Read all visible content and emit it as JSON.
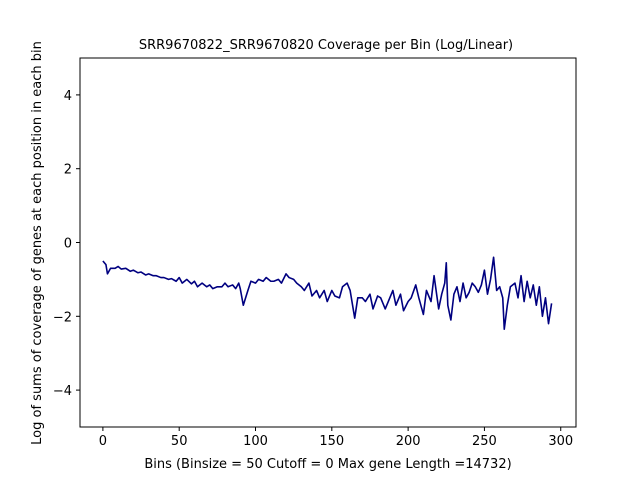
{
  "chart_data": {
    "type": "line",
    "title": "SRR9670822_SRR9670820 Coverage per Bin (Log/Linear)",
    "xlabel": "Bins  (Binsize = 50 Cutoff = 0 Max gene Length =14732)",
    "ylabel": "Log of sums of coverage of genes at each position in each bin",
    "xlim": [
      -15,
      310
    ],
    "ylim": [
      -5,
      5
    ],
    "xticks": [
      0,
      50,
      100,
      150,
      200,
      250,
      300
    ],
    "yticks": [
      -4,
      -2,
      0,
      2,
      4
    ],
    "grid": false,
    "line_color": "#000080",
    "series": [
      {
        "x": [
          0,
          2,
          3,
          5,
          8,
          10,
          12,
          15,
          18,
          20,
          23,
          25,
          28,
          30,
          33,
          35,
          38,
          40,
          43,
          45,
          48,
          50,
          52,
          55,
          58,
          60,
          62,
          65,
          68,
          70,
          72,
          75,
          78,
          80,
          82,
          85,
          87,
          89,
          90,
          92,
          95,
          97,
          100,
          102,
          105,
          107,
          110,
          112,
          115,
          117,
          120,
          122,
          125,
          127,
          130,
          132,
          135,
          137,
          140,
          142,
          145,
          147,
          150,
          152,
          155,
          157,
          160,
          162,
          165,
          167,
          170,
          172,
          175,
          177,
          180,
          182,
          185,
          187,
          190,
          192,
          195,
          197,
          200,
          202,
          205,
          207,
          210,
          212,
          215,
          217,
          220,
          222,
          224,
          225,
          226,
          228,
          230,
          232,
          234,
          236,
          238,
          240,
          242,
          244,
          246,
          248,
          250,
          252,
          254,
          256,
          258,
          260,
          262,
          263,
          265,
          267,
          270,
          272,
          274,
          276,
          278,
          280,
          282,
          284,
          286,
          288,
          290,
          292,
          294
        ],
        "y": [
          -0.5,
          -0.6,
          -0.85,
          -0.7,
          -0.7,
          -0.65,
          -0.72,
          -0.7,
          -0.78,
          -0.75,
          -0.82,
          -0.8,
          -0.88,
          -0.85,
          -0.9,
          -0.9,
          -0.95,
          -0.95,
          -1.0,
          -0.98,
          -1.05,
          -0.95,
          -1.1,
          -1.0,
          -1.12,
          -1.05,
          -1.2,
          -1.1,
          -1.2,
          -1.15,
          -1.25,
          -1.2,
          -1.2,
          -1.1,
          -1.2,
          -1.15,
          -1.25,
          -1.1,
          -1.25,
          -1.7,
          -1.3,
          -1.05,
          -1.1,
          -1.0,
          -1.05,
          -0.95,
          -1.05,
          -1.05,
          -1.0,
          -1.1,
          -0.85,
          -0.95,
          -1.0,
          -1.1,
          -1.2,
          -1.3,
          -1.1,
          -1.45,
          -1.3,
          -1.5,
          -1.3,
          -1.6,
          -1.3,
          -1.45,
          -1.5,
          -1.2,
          -1.1,
          -1.3,
          -2.05,
          -1.5,
          -1.5,
          -1.6,
          -1.4,
          -1.8,
          -1.45,
          -1.5,
          -1.8,
          -1.6,
          -1.3,
          -1.7,
          -1.4,
          -1.85,
          -1.6,
          -1.5,
          -1.15,
          -1.5,
          -1.95,
          -1.3,
          -1.6,
          -0.9,
          -1.8,
          -1.4,
          -1.1,
          -0.55,
          -1.7,
          -2.1,
          -1.4,
          -1.2,
          -1.6,
          -1.1,
          -1.5,
          -1.35,
          -1.1,
          -1.2,
          -1.35,
          -1.15,
          -0.75,
          -1.4,
          -1.0,
          -0.4,
          -1.3,
          -1.2,
          -1.5,
          -2.35,
          -1.7,
          -1.2,
          -1.1,
          -1.5,
          -0.9,
          -1.6,
          -1.05,
          -1.5,
          -1.15,
          -1.7,
          -1.2,
          -2.0,
          -1.5,
          -2.2,
          -1.65
        ]
      }
    ]
  }
}
